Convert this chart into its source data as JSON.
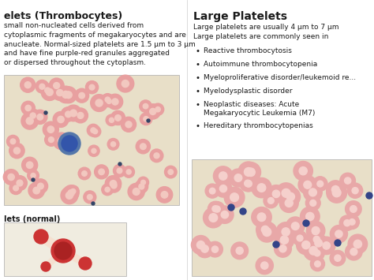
{
  "bg_color": "#ffffff",
  "left_title": "elets (Thrombocytes)",
  "left_body": "small non-nucleated cells derived from\ncytoplasmic fragments of megakaryocytes and are\nanucleate. Normal-sized platelets are 1.5 μm to 3 μm\nand have fine purple-red granules aggregated\nor dispersed throughout the cytoplasm.",
  "right_title": "Large Platelets",
  "right_intro": "Large platelets are usually 4 μm to 7 μm\nLarge platelets are commonly seen in",
  "bullets": [
    "Reactive thrombocytosis",
    "Autoimmune thrombocytopenia",
    "Myeloproliferative disorder/leukemoid re...",
    "Myelodysplastic disorder",
    "Neoplastic diseases: Acute\nMegakaryocytic Leukemia (M7)",
    "Hereditary thrombocytopenias"
  ],
  "caption_bottom_left": "lets (normal)",
  "img1_color": "#e8dfc8",
  "img2_color": "#e8dfc8",
  "img3_color": "#f0ece0",
  "text_color": "#1a1a1a",
  "font_size_title": 9,
  "font_size_body": 6.5,
  "font_size_caption": 7,
  "rbc1_color": "#e8a0a0",
  "rbc1_inner": "#f2c8c0",
  "rbc2_color": "#e8a8a8",
  "rbc2_inner": "#f5d0cc",
  "lymph_color": "#5577aa",
  "platelet_dot_color": "#334466",
  "large_platelet_color": "#334488",
  "platelet_body_color": "#cc3333",
  "platelet_arm_color": "#f5e0d0"
}
